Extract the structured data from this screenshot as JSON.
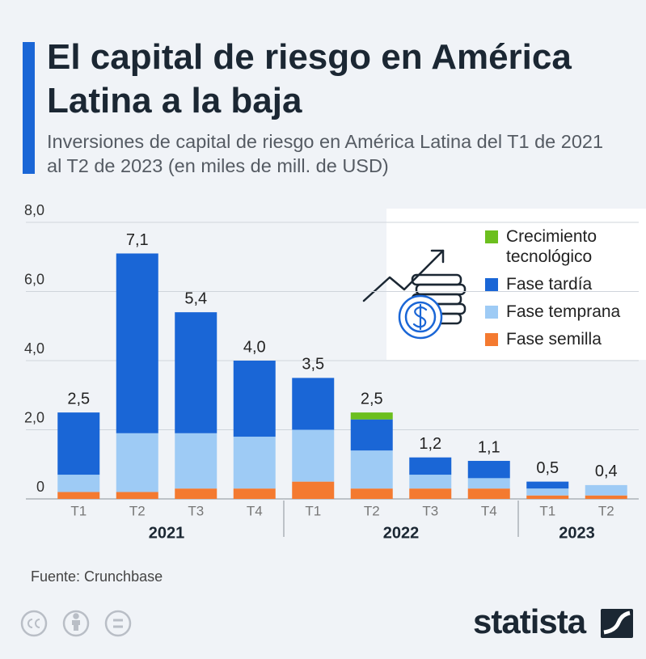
{
  "chart_data": {
    "type": "stacked-bar",
    "title": "El capital de riesgo en América Latina a la baja",
    "subtitle": "Inversiones de capital de riesgo en América Latina del T1 de 2021 al T2 de 2023 (en miles de mill. de USD)",
    "groups": [
      {
        "label": "2021",
        "categories": [
          "T1",
          "T2",
          "T3",
          "T4"
        ]
      },
      {
        "label": "2022",
        "categories": [
          "T1",
          "T2",
          "T3",
          "T4"
        ]
      },
      {
        "label": "2023",
        "categories": [
          "T1",
          "T2"
        ]
      }
    ],
    "series": [
      {
        "name": "Crecimiento tecnológico",
        "color": "#6cbf1e",
        "values": [
          0,
          0,
          0,
          0,
          0,
          0.2,
          0,
          0,
          0,
          0
        ]
      },
      {
        "name": "Fase tardía",
        "color": "#1a66d6",
        "values": [
          1.8,
          5.2,
          3.5,
          2.2,
          1.5,
          0.9,
          0.5,
          0.5,
          0.2,
          0
        ]
      },
      {
        "name": "Fase temprana",
        "color": "#9ecbf5",
        "values": [
          0.5,
          1.7,
          1.6,
          1.5,
          1.5,
          1.1,
          0.4,
          0.3,
          0.2,
          0.3
        ]
      },
      {
        "name": "Fase semilla",
        "color": "#f47a30",
        "values": [
          0.2,
          0.2,
          0.3,
          0.3,
          0.5,
          0.3,
          0.3,
          0.3,
          0.1,
          0.1
        ]
      }
    ],
    "totals": {
      "values": [
        2.5,
        7.1,
        5.4,
        4.0,
        3.5,
        2.5,
        1.2,
        1.1,
        0.5,
        0.4
      ],
      "value_labels": [
        "2,5",
        "7,1",
        "5,4",
        "4,0",
        "3,5",
        "2,5",
        "1,2",
        "1,1",
        "0,5",
        "0,4"
      ]
    },
    "ylim": [
      0,
      8
    ],
    "yticks": [
      {
        "value": 0,
        "label": "0"
      },
      {
        "value": 2,
        "label": "2,0"
      },
      {
        "value": 4,
        "label": "4,0"
      },
      {
        "value": 6,
        "label": "6,0"
      },
      {
        "value": 8,
        "label": "8,0"
      }
    ],
    "grid": true,
    "legend": "top-right",
    "source": "Fuente: Crunchbase",
    "brand": "statista"
  }
}
